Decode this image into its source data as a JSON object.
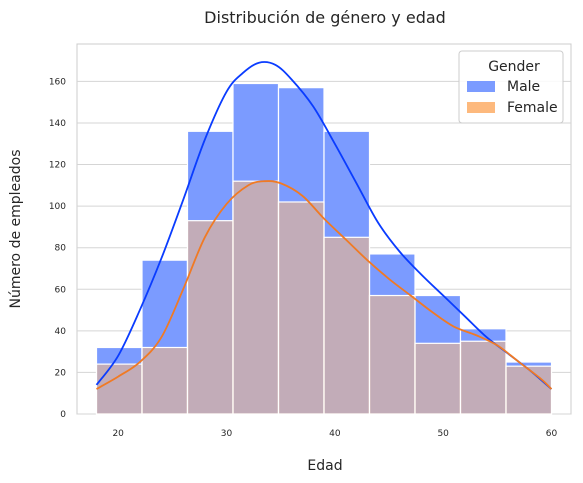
{
  "chart_data": {
    "type": "histogram",
    "title": "Distribución de género y edad",
    "xlabel": "Edad",
    "ylabel": "Número de empleados",
    "xlim": [
      16.2,
      61.8
    ],
    "ylim": [
      0,
      178
    ],
    "x_ticks": [
      20,
      30,
      40,
      50,
      60
    ],
    "y_ticks": [
      0,
      20,
      40,
      60,
      80,
      100,
      120,
      140,
      160
    ],
    "grid": true,
    "legend": {
      "title": "Gender",
      "position": "top-right"
    },
    "bin_edges": [
      18,
      22.2,
      26.4,
      30.6,
      34.8,
      39,
      43.2,
      47.4,
      51.6,
      55.8,
      60
    ],
    "series": [
      {
        "name": "Male",
        "color": "#7b9bff",
        "kde_color": "#0a3cff",
        "counts": [
          32,
          74,
          136,
          159,
          157,
          136,
          77,
          57,
          41,
          25
        ],
        "kde": [
          [
            18,
            14
          ],
          [
            20,
            28
          ],
          [
            22,
            50
          ],
          [
            24,
            75
          ],
          [
            26,
            103
          ],
          [
            28,
            132
          ],
          [
            30,
            155
          ],
          [
            31.5,
            164
          ],
          [
            33,
            169
          ],
          [
            34.5,
            168
          ],
          [
            36,
            161
          ],
          [
            38,
            148
          ],
          [
            40,
            130
          ],
          [
            42,
            111
          ],
          [
            44,
            92
          ],
          [
            46,
            78
          ],
          [
            48,
            67
          ],
          [
            50,
            57
          ],
          [
            52,
            47
          ],
          [
            54,
            37
          ],
          [
            56,
            29
          ],
          [
            58,
            21
          ],
          [
            60,
            12
          ]
        ]
      },
      {
        "name": "Female",
        "color": "#fdb97d",
        "kde_color": "#f07a24",
        "counts": [
          24,
          32,
          93,
          112,
          102,
          85,
          57,
          34,
          35,
          23
        ],
        "kde": [
          [
            18,
            12
          ],
          [
            20,
            18
          ],
          [
            22,
            25
          ],
          [
            24,
            37
          ],
          [
            26,
            60
          ],
          [
            28,
            85
          ],
          [
            30,
            101
          ],
          [
            32,
            110
          ],
          [
            33.5,
            112
          ],
          [
            35,
            111
          ],
          [
            37,
            105
          ],
          [
            39,
            94
          ],
          [
            41,
            84
          ],
          [
            43,
            74
          ],
          [
            45,
            65
          ],
          [
            47,
            57
          ],
          [
            49,
            49
          ],
          [
            51,
            42
          ],
          [
            53,
            38
          ],
          [
            55,
            33
          ],
          [
            57,
            25
          ],
          [
            59,
            17
          ],
          [
            60,
            12
          ]
        ]
      }
    ]
  }
}
